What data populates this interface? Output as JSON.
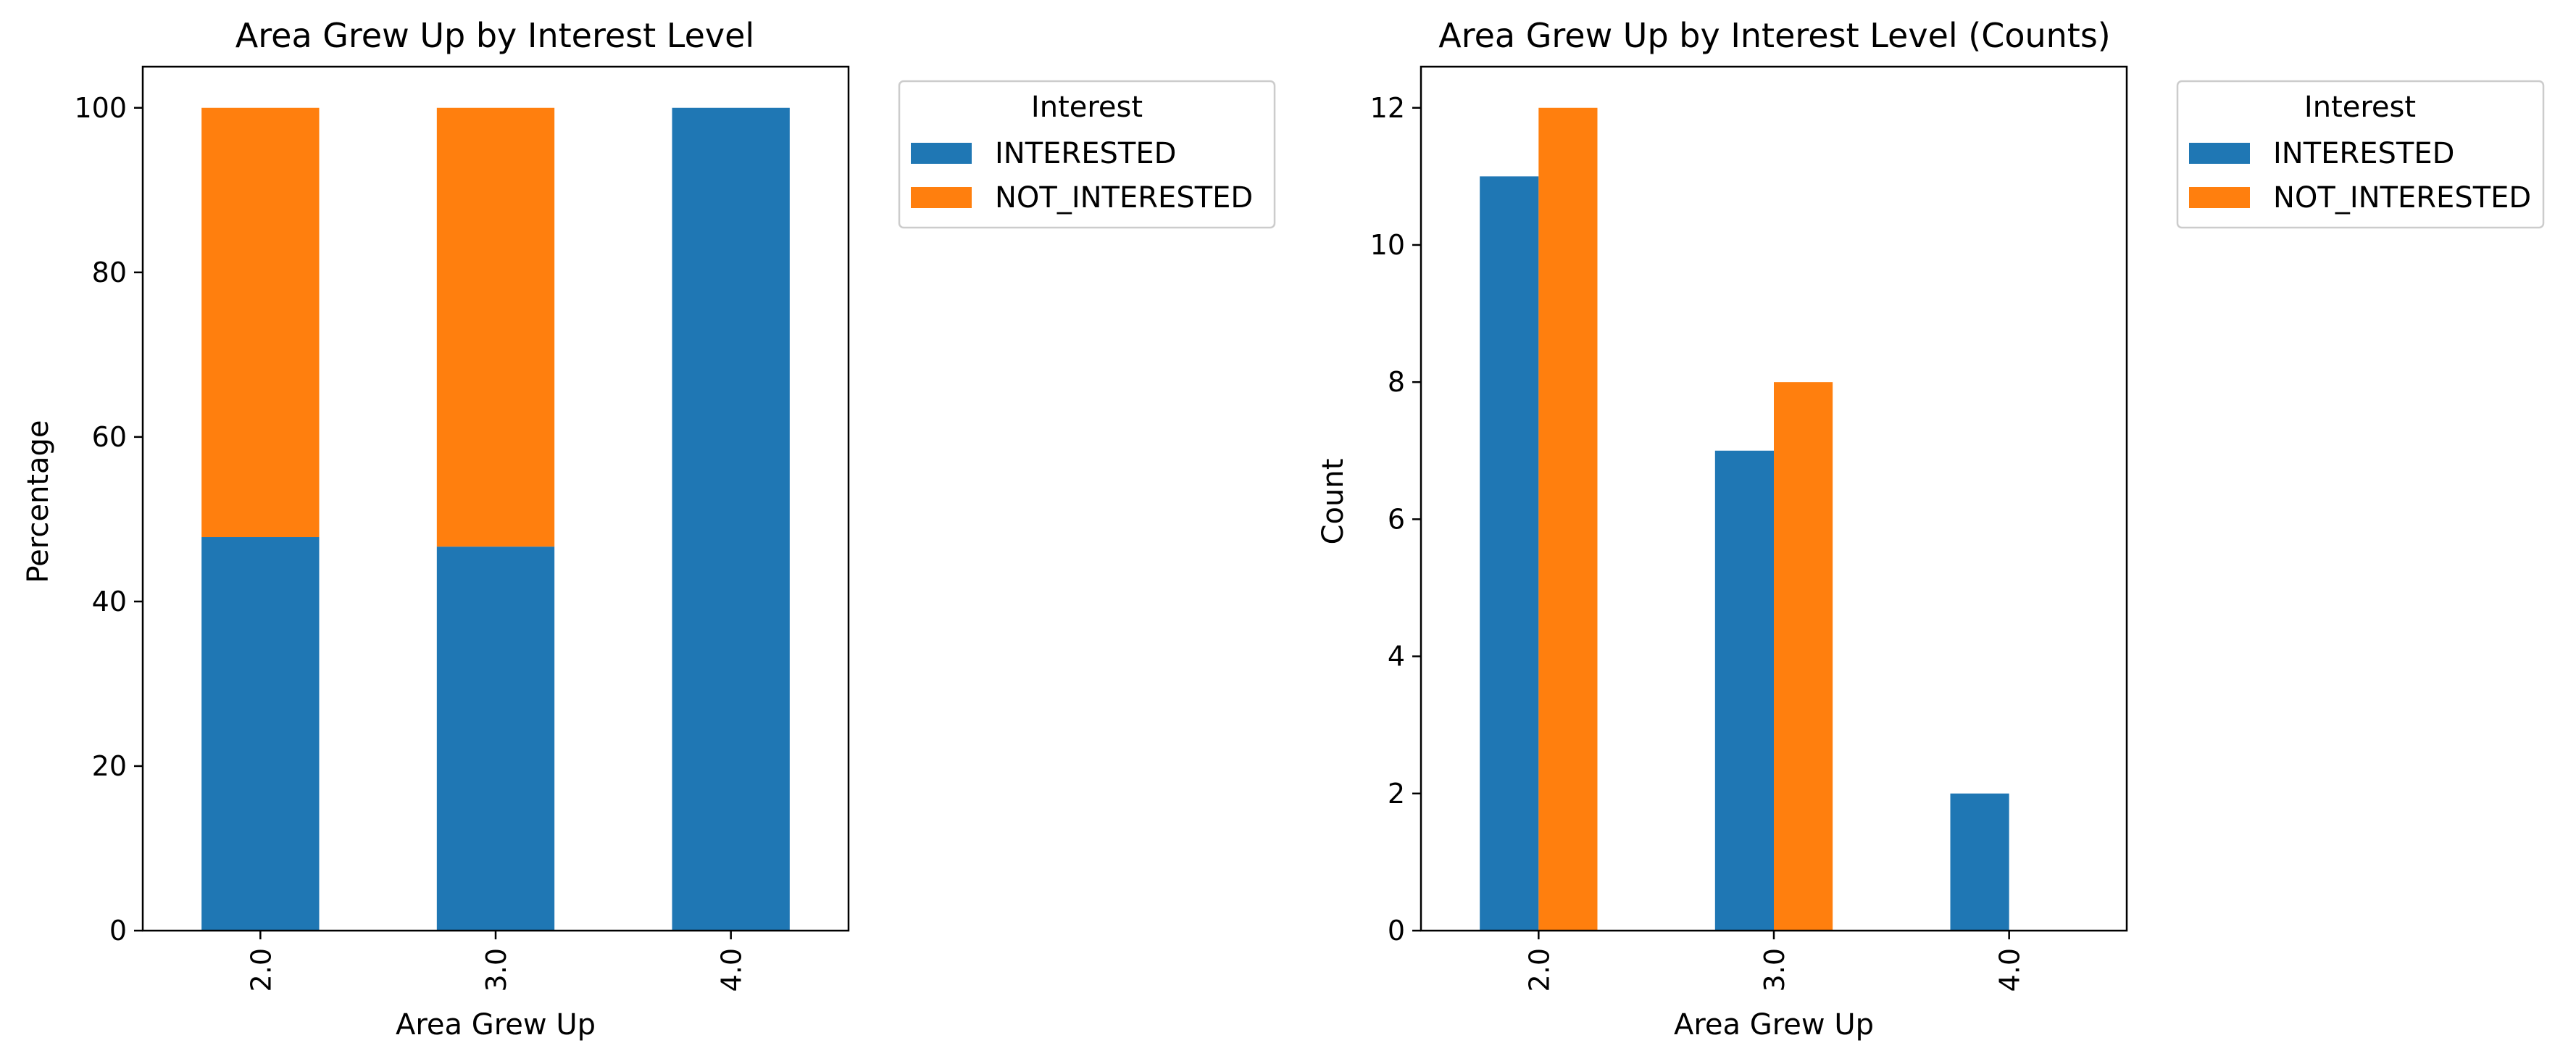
{
  "chart_data": [
    {
      "type": "bar",
      "stacked": true,
      "title": "Area Grew Up by Interest Level",
      "xlabel": "Area Grew Up",
      "ylabel": "Percentage",
      "categories": [
        "2.0",
        "3.0",
        "4.0"
      ],
      "series": [
        {
          "name": "INTERESTED",
          "values": [
            47.83,
            46.67,
            100.0
          ]
        },
        {
          "name": "NOT_INTERESTED",
          "values": [
            52.17,
            53.33,
            0.0
          ]
        }
      ],
      "ylim": [
        0,
        105
      ],
      "yticks": [
        "0",
        "20",
        "40",
        "60",
        "80",
        "100"
      ],
      "legend": {
        "title": "Interest",
        "placement": "outside upper right"
      },
      "grid": false
    },
    {
      "type": "bar",
      "stacked": false,
      "title": "Area Grew Up by Interest Level (Counts)",
      "xlabel": "Area Grew Up",
      "ylabel": "Count",
      "categories": [
        "2.0",
        "3.0",
        "4.0"
      ],
      "series": [
        {
          "name": "INTERESTED",
          "values": [
            11,
            7,
            2
          ]
        },
        {
          "name": "NOT_INTERESTED",
          "values": [
            12,
            8,
            0
          ]
        }
      ],
      "ylim": [
        0,
        12.6
      ],
      "yticks": [
        "0",
        "2",
        "4",
        "6",
        "8",
        "10",
        "12"
      ],
      "legend": {
        "title": "Interest",
        "placement": "outside upper right"
      },
      "grid": false
    }
  ],
  "colors": {
    "INTERESTED": "#1f77b4",
    "NOT_INTERESTED": "#ff7f0e"
  }
}
